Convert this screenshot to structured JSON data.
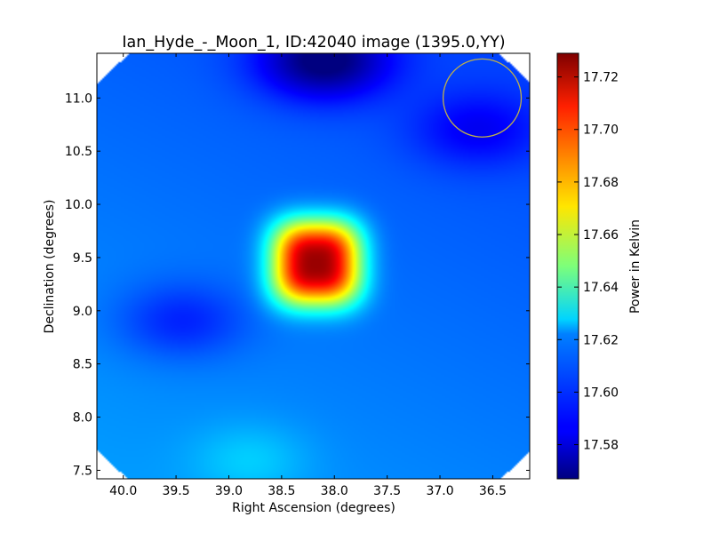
{
  "chart_data": {
    "type": "heatmap",
    "title": "Ian_Hyde_-_Moon_1, ID:42040 image (1395.0,YY)",
    "xlabel": "Right Ascension (degrees)",
    "ylabel": "Declination (degrees)",
    "colorbar_label": "Power in Kelvin",
    "colormap": "jet",
    "xlim": [
      40.25,
      36.15
    ],
    "ylim": [
      7.42,
      11.42
    ],
    "x_ticks": [
      {
        "value": 40.0,
        "label": "40.0"
      },
      {
        "value": 39.5,
        "label": "39.5"
      },
      {
        "value": 39.0,
        "label": "39.0"
      },
      {
        "value": 38.5,
        "label": "38.5"
      },
      {
        "value": 38.0,
        "label": "38.0"
      },
      {
        "value": 37.5,
        "label": "37.5"
      },
      {
        "value": 37.0,
        "label": "37.0"
      },
      {
        "value": 36.5,
        "label": "36.5"
      }
    ],
    "y_ticks": [
      {
        "value": 7.5,
        "label": "7.5"
      },
      {
        "value": 8.0,
        "label": "8.0"
      },
      {
        "value": 8.5,
        "label": "8.5"
      },
      {
        "value": 9.0,
        "label": "9.0"
      },
      {
        "value": 9.5,
        "label": "9.5"
      },
      {
        "value": 10.0,
        "label": "10.0"
      },
      {
        "value": 10.5,
        "label": "10.5"
      },
      {
        "value": 11.0,
        "label": "11.0"
      }
    ],
    "color_range": [
      17.567,
      17.729
    ],
    "colorbar_ticks": [
      {
        "value": 17.58,
        "label": "17.58"
      },
      {
        "value": 17.6,
        "label": "17.60"
      },
      {
        "value": 17.62,
        "label": "17.62"
      },
      {
        "value": 17.64,
        "label": "17.64"
      },
      {
        "value": 17.66,
        "label": "17.66"
      },
      {
        "value": 17.68,
        "label": "17.68"
      },
      {
        "value": 17.7,
        "label": "17.70"
      },
      {
        "value": 17.72,
        "label": "17.72"
      }
    ],
    "background_level": 17.605,
    "features": [
      {
        "kind": "peak",
        "ra": 38.17,
        "dec": 9.45,
        "value": 17.725
      },
      {
        "kind": "minimum",
        "ra": 38.1,
        "dec": 11.35,
        "value": 17.568
      },
      {
        "kind": "minimum",
        "ra": 39.45,
        "dec": 8.9,
        "value": 17.59
      },
      {
        "kind": "minimum",
        "ra": 36.65,
        "dec": 10.7,
        "value": 17.59
      },
      {
        "kind": "enhancement",
        "ra": 38.8,
        "dec": 7.6,
        "value": 17.615
      }
    ],
    "circle": {
      "ra": 36.6,
      "dec": 11.0,
      "radius": 0.37,
      "color": "#bfb04a"
    },
    "colors": {
      "background": "#ffffff",
      "axis": "#000000"
    }
  }
}
